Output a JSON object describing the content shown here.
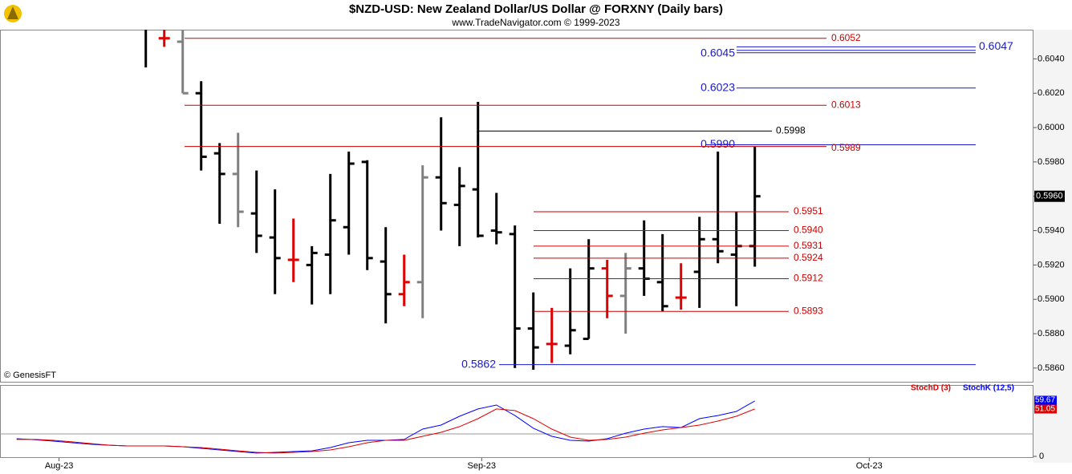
{
  "chart_data": [
    {
      "type": "ohlc",
      "title": "$NZD-USD:  New Zealand Dollar/US Dollar @ FORXNY  (Daily bars)",
      "subtitle": "www.TradeNavigator.com © 1999-2023",
      "watermark": "© GenesisFT",
      "x": [
        0,
        1,
        2,
        3,
        4,
        5,
        6,
        7,
        8,
        9,
        10,
        11,
        12,
        13,
        14,
        15,
        16,
        17,
        18,
        19,
        20,
        21,
        22,
        23,
        24,
        25,
        26,
        27,
        28,
        29,
        30,
        31,
        32,
        33
      ],
      "open": [
        0.606,
        0.6052,
        0.605,
        0.602,
        0.5985,
        0.5973,
        0.595,
        0.5936,
        0.5923,
        0.592,
        0.5926,
        0.5942,
        0.598,
        0.5922,
        0.5903,
        0.591,
        0.5971,
        0.5955,
        0.5964,
        0.594,
        0.5938,
        0.5883,
        0.5874,
        0.5873,
        0.5877,
        0.5918,
        0.5902,
        0.5918,
        0.591,
        0.5901,
        0.5916,
        0.5935,
        0.5926,
        0.5931
      ],
      "high": [
        0.6062,
        0.606,
        0.6058,
        0.6027,
        0.5991,
        0.5997,
        0.5975,
        0.5964,
        0.5947,
        0.5931,
        0.5973,
        0.5986,
        0.5981,
        0.5942,
        0.5926,
        0.5978,
        0.6006,
        0.5977,
        0.6015,
        0.5962,
        0.5943,
        0.5904,
        0.5895,
        0.5918,
        0.5935,
        0.5923,
        0.5927,
        0.5946,
        0.5938,
        0.5921,
        0.5948,
        0.5986,
        0.5951,
        0.5989
      ],
      "low": [
        0.6035,
        0.6047,
        0.602,
        0.5975,
        0.5944,
        0.5942,
        0.5927,
        0.5903,
        0.591,
        0.5897,
        0.5903,
        0.5926,
        0.5917,
        0.5886,
        0.5896,
        0.5889,
        0.594,
        0.5931,
        0.5936,
        0.5932,
        0.586,
        0.5859,
        0.5863,
        0.5868,
        0.5877,
        0.5889,
        0.588,
        0.5902,
        0.5893,
        0.5894,
        0.5895,
        0.5921,
        0.5896,
        0.5919
      ],
      "close": [
        0.6059,
        0.6052,
        0.602,
        0.5983,
        0.5973,
        0.5951,
        0.5937,
        0.5924,
        0.5923,
        0.5927,
        0.5946,
        0.5979,
        0.5924,
        0.5903,
        0.591,
        0.5971,
        0.5956,
        0.5966,
        0.5937,
        0.5939,
        0.5883,
        0.5872,
        0.5874,
        0.5882,
        0.5918,
        0.5902,
        0.5918,
        0.5912,
        0.5896,
        0.5901,
        0.5935,
        0.5928,
        0.5931,
        0.596
      ],
      "bar_colors": [
        "#000000",
        "#e00000",
        "#808080",
        "#000000",
        "#000000",
        "#808080",
        "#000000",
        "#000000",
        "#e00000",
        "#000000",
        "#000000",
        "#000000",
        "#000000",
        "#000000",
        "#e00000",
        "#808080",
        "#000000",
        "#000000",
        "#000000",
        "#000000",
        "#000000",
        "#000000",
        "#e00000",
        "#000000",
        "#000000",
        "#e00000",
        "#808080",
        "#000000",
        "#000000",
        "#e00000",
        "#000000",
        "#000000",
        "#000000",
        "#000000"
      ],
      "xlim": [
        -7.9,
        48.1
      ],
      "xticks": [
        {
          "value": -4.7,
          "label": "Aug-23"
        },
        {
          "value": 18.2,
          "label": "Sep-23"
        },
        {
          "value": 39.2,
          "label": "Oct-23"
        }
      ],
      "ylim": [
        0.5852,
        0.6057
      ],
      "yticks": [
        {
          "value": 0.586,
          "label": "0.5860"
        },
        {
          "value": 0.588,
          "label": "0.5880"
        },
        {
          "value": 0.59,
          "label": "0.5900"
        },
        {
          "value": 0.592,
          "label": "0.5920"
        },
        {
          "value": 0.594,
          "label": "0.5940"
        },
        {
          "value": 0.596,
          "label": "0.5960"
        },
        {
          "value": 0.598,
          "label": "0.5980"
        },
        {
          "value": 0.6,
          "label": "0.6000"
        },
        {
          "value": 0.602,
          "label": "0.6020"
        },
        {
          "value": 0.604,
          "label": "0.6040"
        }
      ],
      "last_price": {
        "value": 0.596,
        "label": "0.5960"
      },
      "levels": [
        {
          "value": 0.6052,
          "color": "#cc0000"
        },
        {
          "value": 0.6047,
          "color": "#1a1acc"
        },
        {
          "value": 0.6045,
          "color": "#1a1acc"
        },
        {
          "value": 0.6023,
          "color": "#1a1acc"
        },
        {
          "value": 0.6013,
          "color": "#cc0000"
        },
        {
          "value": 0.5998,
          "color": "#000000"
        },
        {
          "value": 0.599,
          "label": "0.5990",
          "color": "#1a1acc"
        },
        {
          "value": 0.5989,
          "color": "#cc0000"
        },
        {
          "value": 0.5951,
          "color": "#cc0000"
        },
        {
          "value": 0.594,
          "label": "0.5940",
          "color": "#cc0000"
        },
        {
          "value": 0.5931,
          "color": "#cc0000"
        },
        {
          "value": 0.5924,
          "color": "#cc0000"
        },
        {
          "value": 0.5912,
          "color": "#cc0000"
        },
        {
          "value": 0.5893,
          "color": "#cc0000"
        },
        {
          "value": 0.5862,
          "color": "#1a1acc"
        }
      ]
    },
    {
      "type": "line",
      "x": [
        -7,
        -6,
        -5,
        -4,
        -3,
        -2,
        -1,
        0,
        1,
        2,
        3,
        4,
        5,
        6,
        7,
        8,
        9,
        10,
        11,
        12,
        13,
        14,
        15,
        16,
        17,
        18,
        19,
        20,
        21,
        22,
        23,
        24,
        25,
        26,
        27,
        28,
        29,
        30,
        31,
        32,
        33
      ],
      "xlim": [
        -7.9,
        48.1
      ],
      "ylim": [
        0,
        76
      ],
      "yticks": [
        0
      ],
      "series": [
        {
          "name": "StochK (12,5)",
          "color": "#0000ff",
          "values": [
            19,
            18,
            16.4,
            14.7,
            13,
            12,
            11.2,
            11.2,
            11.2,
            10.4,
            8.6,
            6.9,
            5.2,
            3.5,
            4.3,
            5.2,
            6,
            9.5,
            14.7,
            17.3,
            17.3,
            18.2,
            29.4,
            33.7,
            43.2,
            51,
            55.3,
            44,
            30.3,
            21.6,
            17.3,
            16.4,
            19,
            25,
            29.4,
            32,
            31,
            40.6,
            44,
            48.4,
            59.67
          ]
        },
        {
          "name": "StochD (3)",
          "color": "#e00000",
          "values": [
            18.2,
            18.2,
            17.3,
            15.6,
            13.8,
            12.1,
            11.2,
            11.2,
            11.2,
            10.4,
            9.5,
            7.8,
            6,
            4.3,
            3.5,
            4.3,
            5.2,
            6.9,
            10.4,
            14.7,
            17.3,
            17.3,
            21.6,
            25.9,
            32,
            40.6,
            51,
            49.3,
            40.6,
            29.4,
            20.7,
            17.3,
            18.2,
            20.7,
            25,
            28.5,
            31,
            33.7,
            38,
            43.2,
            51.05
          ]
        }
      ]
    }
  ]
}
